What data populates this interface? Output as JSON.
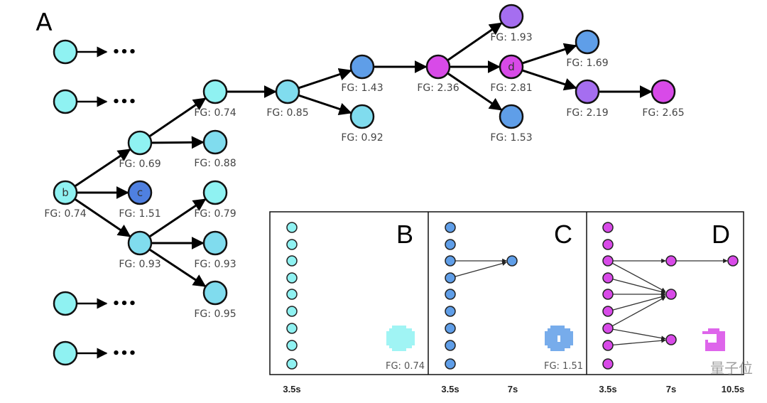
{
  "panel_a_label": "A",
  "ellipsis": "•••",
  "colors": {
    "cyan_light": "#8ff2f2",
    "cyan_mid": "#80dcee",
    "blue": "#5f9ee8",
    "blue_dark": "#4f80e0",
    "purple": "#a56ef0",
    "magenta": "#d84ae8"
  },
  "nodes": [
    {
      "id": "b",
      "letter": "b",
      "fg": "FG: 0.74",
      "color": "cyan_light"
    },
    {
      "id": "n069",
      "letter": "",
      "fg": "FG: 0.69",
      "color": "cyan_light"
    },
    {
      "id": "c",
      "letter": "c",
      "fg": "FG: 1.51",
      "color": "blue_dark"
    },
    {
      "id": "n093a",
      "letter": "",
      "fg": "FG: 0.93",
      "color": "cyan_mid"
    },
    {
      "id": "n074",
      "letter": "",
      "fg": "FG: 0.74",
      "color": "cyan_light"
    },
    {
      "id": "n088",
      "letter": "",
      "fg": "FG: 0.88",
      "color": "cyan_mid"
    },
    {
      "id": "n079",
      "letter": "",
      "fg": "FG: 0.79",
      "color": "cyan_light"
    },
    {
      "id": "n093b",
      "letter": "",
      "fg": "FG: 0.93",
      "color": "cyan_mid"
    },
    {
      "id": "n095",
      "letter": "",
      "fg": "FG: 0.95",
      "color": "cyan_mid"
    },
    {
      "id": "n085",
      "letter": "",
      "fg": "FG: 0.85",
      "color": "cyan_mid"
    },
    {
      "id": "n143",
      "letter": "",
      "fg": "FG: 1.43",
      "color": "blue"
    },
    {
      "id": "n092",
      "letter": "",
      "fg": "FG: 0.92",
      "color": "cyan_mid"
    },
    {
      "id": "n236",
      "letter": "",
      "fg": "FG: 2.36",
      "color": "magenta"
    },
    {
      "id": "n193",
      "letter": "",
      "fg": "FG: 1.93",
      "color": "purple"
    },
    {
      "id": "d",
      "letter": "d",
      "fg": "FG: 2.81",
      "color": "magenta"
    },
    {
      "id": "n153",
      "letter": "",
      "fg": "FG: 1.53",
      "color": "blue"
    },
    {
      "id": "n169",
      "letter": "",
      "fg": "FG: 1.69",
      "color": "blue"
    },
    {
      "id": "n219",
      "letter": "",
      "fg": "FG: 2.19",
      "color": "purple"
    },
    {
      "id": "n265",
      "letter": "",
      "fg": "FG: 2.65",
      "color": "magenta"
    }
  ],
  "edges": [
    [
      "b",
      "n069"
    ],
    [
      "b",
      "c"
    ],
    [
      "b",
      "n093a"
    ],
    [
      "n069",
      "n074"
    ],
    [
      "n069",
      "n088"
    ],
    [
      "n093a",
      "n079"
    ],
    [
      "n093a",
      "n093b"
    ],
    [
      "n093a",
      "n095"
    ],
    [
      "n074",
      "n085"
    ],
    [
      "n085",
      "n143"
    ],
    [
      "n085",
      "n092"
    ],
    [
      "n143",
      "n236"
    ],
    [
      "n236",
      "n193"
    ],
    [
      "n236",
      "d"
    ],
    [
      "n236",
      "n153"
    ],
    [
      "d",
      "n169"
    ],
    [
      "d",
      "n219"
    ],
    [
      "n219",
      "n265"
    ]
  ],
  "insets": [
    {
      "letter": "B",
      "fg": "FG: 0.74",
      "color": "cyan_light",
      "ticks": [
        "3.5s"
      ]
    },
    {
      "letter": "C",
      "fg": "FG: 1.51",
      "color": "blue",
      "ticks": [
        "3.5s",
        "7s"
      ]
    },
    {
      "letter": "D",
      "fg": "",
      "color": "magenta",
      "ticks": [
        "3.5s",
        "7s",
        "10.5s"
      ]
    }
  ],
  "watermark": "量子位"
}
